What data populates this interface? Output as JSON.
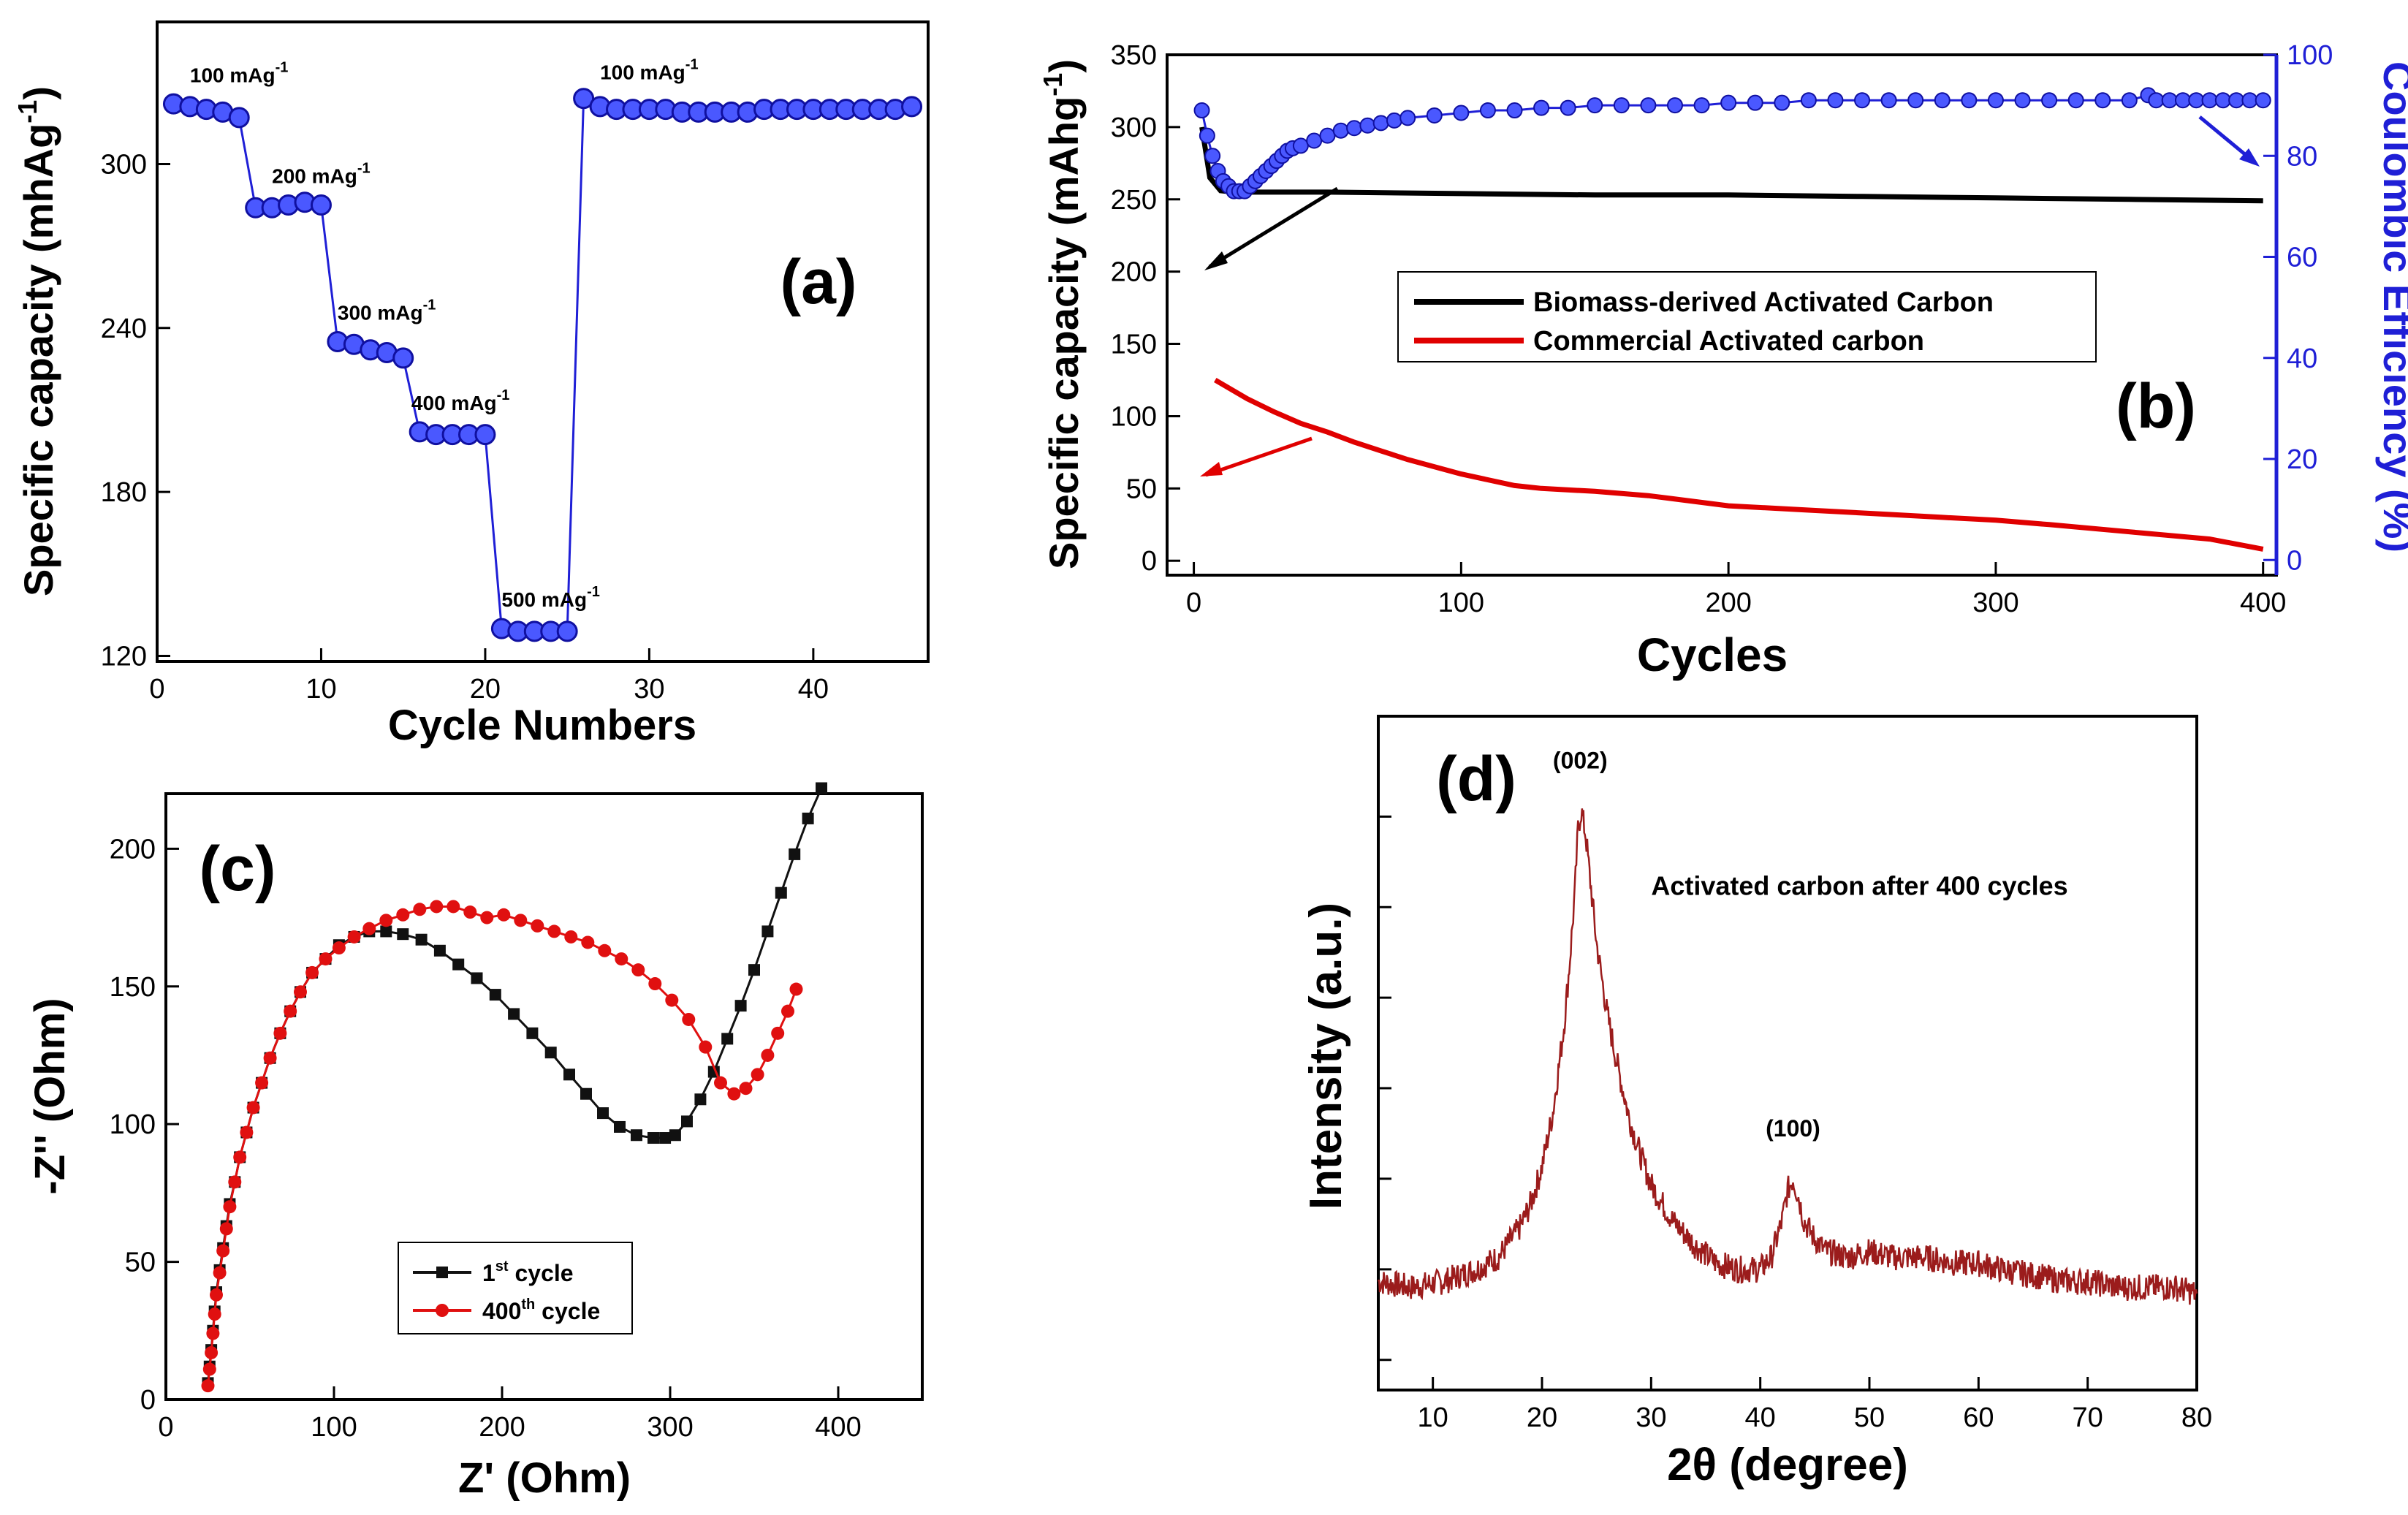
{
  "chart_data": [
    {
      "panel": "(a)",
      "type": "scatter",
      "xlabel": "Cycle Numbers",
      "ylabel": "Specific capacity (mhAg",
      "ylabel_sup": "-1",
      "ylabel_close": ")",
      "xlim": [
        0,
        47
      ],
      "ylim": [
        118,
        352
      ],
      "xticks": [
        0,
        10,
        20,
        30,
        40
      ],
      "yticks": [
        120,
        180,
        240,
        300
      ],
      "series": [
        {
          "color": "#1f1fd6",
          "x": [
            1,
            2,
            3,
            4,
            5,
            6,
            7,
            8,
            9,
            10,
            11,
            12,
            13,
            14,
            15,
            16,
            17,
            18,
            19,
            20,
            21,
            22,
            23,
            24,
            25,
            26,
            27,
            28,
            29,
            30,
            31,
            32,
            33,
            34,
            35,
            36,
            37,
            38,
            39,
            40,
            41,
            42,
            43,
            44,
            45,
            46
          ],
          "y": [
            322,
            321,
            320,
            319,
            317,
            284,
            284,
            285,
            286,
            285,
            235,
            234,
            232,
            231,
            229,
            202,
            201,
            201,
            201,
            201,
            130,
            129,
            129,
            129,
            129,
            324,
            321,
            320,
            320,
            320,
            320,
            319,
            319,
            319,
            319,
            319,
            320,
            320,
            320,
            320,
            320,
            320,
            320,
            320,
            320,
            321
          ]
        }
      ],
      "annotations": [
        {
          "text": "100 mAg",
          "sup": "-1",
          "x": 2,
          "y": 330
        },
        {
          "text": "200 mAg",
          "sup": "-1",
          "x": 7,
          "y": 293
        },
        {
          "text": "300 mAg",
          "sup": "-1",
          "x": 11,
          "y": 243
        },
        {
          "text": "400 mAg",
          "sup": "-1",
          "x": 15.5,
          "y": 210
        },
        {
          "text": "500 mAg",
          "sup": "-1",
          "x": 21,
          "y": 138
        },
        {
          "text": "100 mAg",
          "sup": "-1",
          "x": 27,
          "y": 331
        }
      ],
      "label": "(a)"
    },
    {
      "panel": "(b)",
      "type": "line",
      "xlabel": "Cycles",
      "ylabel_left": "Specific capacity (mAhg",
      "ylabel_left_sup": "-1",
      "ylabel_left_close": ")",
      "ylabel_right": "Coulombic Efficiency (%)",
      "xlim": [
        -10,
        405
      ],
      "ylim_left": [
        -10,
        350
      ],
      "ylim_right": [
        0,
        100
      ],
      "xticks": [
        0,
        100,
        200,
        300,
        400
      ],
      "yticks_left": [
        0,
        50,
        100,
        150,
        200,
        250,
        300,
        350
      ],
      "yticks_right": [
        0,
        20,
        40,
        60,
        80,
        100
      ],
      "legend": [
        "Biomass-derived Activated Carbon",
        "Commercial Activated carbon"
      ],
      "legend_position": "middle",
      "series": [
        {
          "name": "Biomass-derived Activated Carbon",
          "color": "#000000",
          "axis": "left",
          "x": [
            3,
            6,
            10,
            15,
            25,
            50,
            100,
            150,
            200,
            250,
            300,
            350,
            400
          ],
          "y": [
            300,
            265,
            256,
            255,
            255,
            255,
            254,
            253,
            253,
            252,
            251,
            250,
            249
          ]
        },
        {
          "name": "Commercial Activated carbon",
          "color": "#e00000",
          "axis": "left",
          "x": [
            8,
            20,
            30,
            40,
            50,
            60,
            70,
            80,
            100,
            120,
            130,
            150,
            170,
            200,
            230,
            260,
            280,
            300,
            320,
            350,
            380,
            400
          ],
          "y": [
            125,
            112,
            103,
            95,
            89,
            82,
            76,
            70,
            60,
            52,
            50,
            48,
            45,
            38,
            35,
            32,
            30,
            28,
            25,
            20,
            15,
            8
          ]
        },
        {
          "name": "Coulombic Efficiency",
          "color": "#1f1fd6",
          "axis": "right",
          "x": [
            3,
            5,
            7,
            9,
            11,
            13,
            15,
            17,
            19,
            21,
            23,
            25,
            27,
            29,
            31,
            33,
            35,
            37,
            40,
            45,
            50,
            55,
            60,
            65,
            70,
            75,
            80,
            90,
            100,
            110,
            120,
            130,
            140,
            150,
            160,
            170,
            180,
            190,
            200,
            210,
            220,
            230,
            240,
            250,
            260,
            270,
            280,
            290,
            300,
            310,
            320,
            330,
            340,
            350,
            357,
            360,
            365,
            370,
            375,
            380,
            385,
            390,
            395,
            400
          ],
          "y": [
            89,
            84,
            80,
            77,
            75,
            74,
            73,
            73,
            73,
            74,
            75,
            76,
            77,
            78,
            79,
            80,
            81,
            81.5,
            82,
            83,
            84,
            85,
            85.5,
            86,
            86.5,
            87,
            87.5,
            88,
            88.5,
            89,
            89,
            89.5,
            89.5,
            90,
            90,
            90,
            90,
            90,
            90.5,
            90.5,
            90.5,
            91,
            91,
            91,
            91,
            91,
            91,
            91,
            91,
            91,
            91,
            91,
            91,
            91,
            92,
            91,
            91,
            91,
            91,
            91,
            91,
            91,
            91,
            91
          ]
        }
      ],
      "label": "(b)"
    },
    {
      "panel": "(c)",
      "type": "scatter",
      "xlabel": "Z' (Ohm)",
      "ylabel": "-Z'' (Ohm)",
      "xlim": [
        0,
        450
      ],
      "ylim": [
        0,
        220
      ],
      "xticks": [
        0,
        100,
        200,
        300,
        400
      ],
      "yticks": [
        0,
        50,
        100,
        150,
        200
      ],
      "legend_position": "lower-middle",
      "series": [
        {
          "name": "1",
          "name_sup": "st",
          "name_suffix": " cycle",
          "color": "#111111",
          "marker": "square",
          "x": [
            25,
            26,
            27,
            28,
            29,
            30,
            32,
            34,
            36,
            38,
            41,
            44,
            48,
            52,
            57,
            62,
            68,
            74,
            80,
            87,
            95,
            103,
            112,
            121,
            131,
            141,
            152,
            163,
            174,
            185,
            196,
            207,
            218,
            229,
            240,
            250,
            260,
            270,
            280,
            290,
            297,
            303,
            310,
            318,
            326,
            334,
            342,
            350,
            358,
            366,
            374,
            382,
            390
          ],
          "y": [
            6,
            12,
            18,
            25,
            32,
            39,
            47,
            55,
            63,
            71,
            79,
            88,
            97,
            106,
            115,
            124,
            133,
            141,
            148,
            155,
            160,
            165,
            168,
            170,
            170,
            169,
            167,
            163,
            158,
            153,
            147,
            140,
            133,
            126,
            118,
            111,
            104,
            99,
            96,
            95,
            95,
            96,
            101,
            109,
            119,
            131,
            143,
            156,
            170,
            184,
            198,
            211,
            222
          ]
        },
        {
          "name": "400",
          "name_sup": "th",
          "name_suffix": " cycle",
          "color": "#e01010",
          "marker": "circle",
          "x": [
            25,
            26,
            27,
            28,
            29,
            30,
            32,
            34,
            36,
            38,
            41,
            44,
            48,
            52,
            57,
            62,
            68,
            74,
            80,
            87,
            95,
            103,
            112,
            121,
            131,
            141,
            151,
            161,
            171,
            181,
            191,
            201,
            211,
            221,
            231,
            241,
            251,
            261,
            271,
            281,
            291,
            301,
            311,
            321,
            330,
            338,
            345,
            352,
            358,
            364,
            370,
            375
          ],
          "y": [
            5,
            11,
            17,
            24,
            31,
            38,
            46,
            54,
            62,
            70,
            79,
            88,
            97,
            106,
            115,
            124,
            133,
            141,
            148,
            155,
            160,
            164,
            168,
            171,
            174,
            176,
            178,
            179,
            179,
            177,
            175,
            176,
            174,
            172,
            170,
            168,
            166,
            163,
            160,
            156,
            151,
            145,
            138,
            128,
            115,
            111,
            113,
            118,
            125,
            133,
            141,
            149
          ]
        }
      ],
      "label": "(c)"
    },
    {
      "panel": "(d)",
      "type": "line",
      "xlabel": "2θ (degree)",
      "ylabel": "Intensity (a.u.)",
      "xlim": [
        5,
        80
      ],
      "ylim": [
        0,
        1
      ],
      "xticks": [
        10,
        20,
        30,
        40,
        50,
        60,
        70,
        80
      ],
      "series": [
        {
          "color": "#9b1c1c",
          "x": [
            5,
            8,
            11,
            14,
            16,
            18,
            19,
            20,
            21,
            22,
            22.5,
            23,
            23.3,
            23.6,
            24,
            24.5,
            25,
            26,
            27,
            28,
            29,
            30,
            32,
            34,
            36,
            38,
            40,
            41,
            42,
            42.5,
            43,
            43.5,
            44,
            45,
            46,
            48,
            50,
            52,
            55,
            58,
            60,
            62,
            65,
            68,
            70,
            73,
            75,
            78,
            80
          ],
          "y": [
            0.18,
            0.17,
            0.18,
            0.2,
            0.22,
            0.27,
            0.31,
            0.37,
            0.46,
            0.6,
            0.7,
            0.82,
            0.93,
            0.96,
            0.92,
            0.83,
            0.74,
            0.62,
            0.53,
            0.45,
            0.39,
            0.34,
            0.28,
            0.24,
            0.21,
            0.2,
            0.2,
            0.22,
            0.28,
            0.33,
            0.35,
            0.32,
            0.28,
            0.25,
            0.23,
            0.22,
            0.23,
            0.22,
            0.22,
            0.21,
            0.21,
            0.2,
            0.19,
            0.18,
            0.18,
            0.17,
            0.17,
            0.17,
            0.16
          ]
        }
      ],
      "annotations": [
        {
          "text": "(002)",
          "x": 23.5,
          "y": 1.03
        },
        {
          "text": "(100)",
          "x": 43,
          "y": 0.42
        },
        {
          "text": "Activated carbon after 400 cycles",
          "x": 30,
          "y": 0.82
        }
      ],
      "label": "(d)"
    }
  ]
}
